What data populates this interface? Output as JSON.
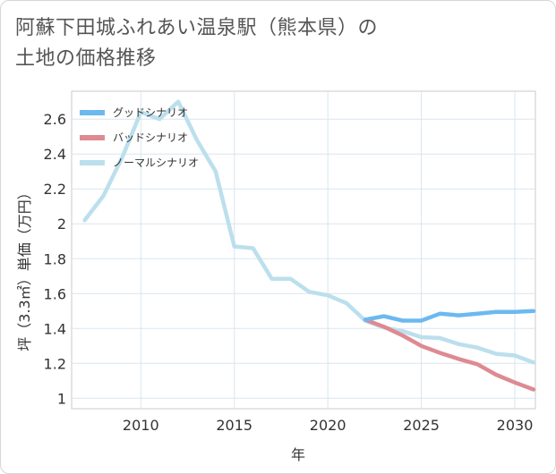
{
  "title_line1": "阿蘇下田城ふれあい温泉駅（熊本県）の",
  "title_line2": "土地の価格推移",
  "chart_data": {
    "type": "line",
    "xlabel": "年",
    "ylabel": "坪（3.3㎡）単価（万円）",
    "xlim": [
      2006.3,
      2031.1
    ],
    "ylim": [
      0.94,
      2.76
    ],
    "xticks": [
      2010,
      2015,
      2020,
      2025,
      2030
    ],
    "yticks": [
      1,
      1.2,
      1.4,
      1.6,
      1.8,
      2,
      2.2,
      2.4,
      2.6
    ],
    "ytick_labels": [
      "1",
      "1.2",
      "1.4",
      "1.6",
      "1.8",
      "2",
      "2.2",
      "2.4",
      "2.6"
    ],
    "grid": true,
    "legend_position": "top-left",
    "series": [
      {
        "name": "グッドシナリオ",
        "color": "#6cb9ef",
        "x": [
          2022,
          2023,
          2024,
          2025,
          2026,
          2027,
          2028,
          2029,
          2030,
          2031
        ],
        "y": [
          1.45,
          1.47,
          1.445,
          1.445,
          1.485,
          1.475,
          1.485,
          1.495,
          1.495,
          1.5
        ]
      },
      {
        "name": "バッドシナリオ",
        "color": "#de8a92",
        "x": [
          2022,
          2023,
          2024,
          2025,
          2026,
          2027,
          2028,
          2029,
          2030,
          2031
        ],
        "y": [
          1.45,
          1.41,
          1.36,
          1.3,
          1.26,
          1.225,
          1.195,
          1.135,
          1.09,
          1.05
        ]
      },
      {
        "name": "ノーマルシナリオ",
        "color": "#bcdfed",
        "x": [
          2007,
          2008,
          2009,
          2010,
          2011,
          2012,
          2013,
          2014,
          2015,
          2016,
          2017,
          2018,
          2019,
          2020,
          2021,
          2022,
          2023,
          2024,
          2025,
          2026,
          2027,
          2028,
          2029,
          2030,
          2031
        ],
        "y": [
          2.02,
          2.16,
          2.38,
          2.64,
          2.6,
          2.7,
          2.48,
          2.3,
          1.87,
          1.86,
          1.685,
          1.685,
          1.61,
          1.59,
          1.545,
          1.445,
          1.405,
          1.385,
          1.35,
          1.345,
          1.31,
          1.29,
          1.255,
          1.245,
          1.205
        ]
      }
    ]
  }
}
